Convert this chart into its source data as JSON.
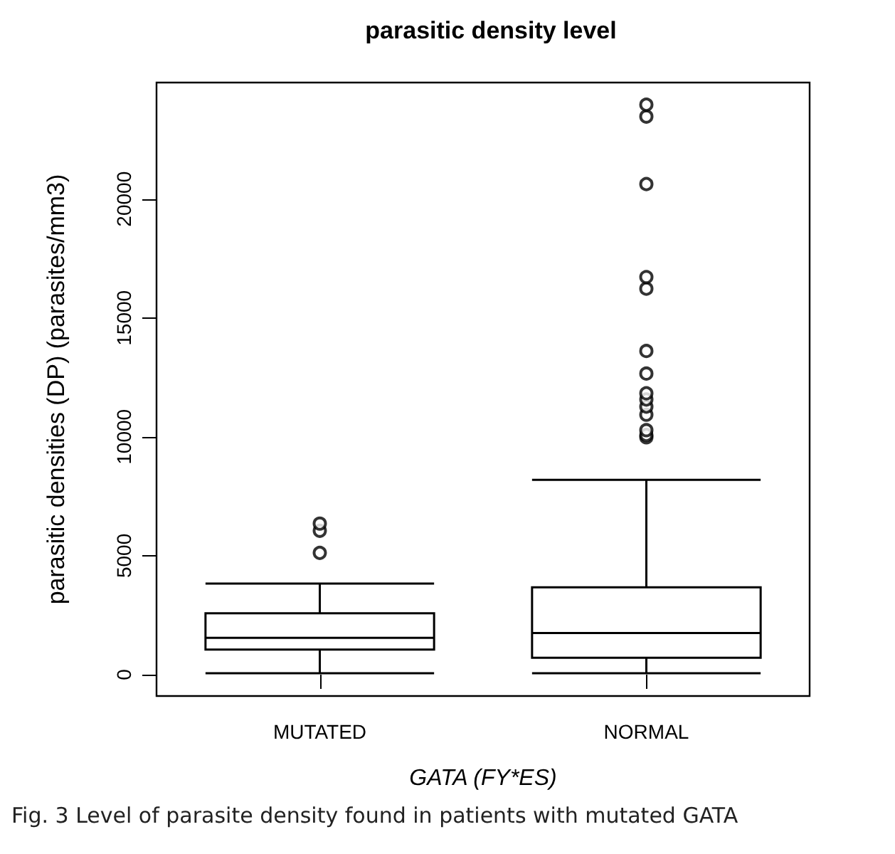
{
  "chart_data": {
    "type": "box",
    "title": "parasitic density level",
    "xlabel": "GATA (FY*ES)",
    "ylabel": "parasitic densities (DP) (parasites/mm3)",
    "categories": [
      "MUTATED",
      "NORMAL"
    ],
    "boxes": [
      {
        "low": 60,
        "q1": 1050,
        "median": 1550,
        "q3": 2580,
        "high": 3830,
        "outliers": [
          5120,
          6050,
          6350
        ]
      },
      {
        "low": 60,
        "q1": 710,
        "median": 1750,
        "q3": 3670,
        "high": 8190,
        "outliers": [
          9980,
          10080,
          10280,
          10930,
          11270,
          11570,
          11830,
          12660,
          13610,
          16230,
          16720,
          20630,
          23470,
          23970
        ]
      }
    ],
    "color": "#000000",
    "ylim": [
      -900,
      24900
    ],
    "yticks": [
      0,
      5000,
      10000,
      15000,
      20000
    ],
    "marker": "circle",
    "annotations": [
      "Fig. 3  Level of parasite density found in patients with mutated GATA"
    ]
  }
}
